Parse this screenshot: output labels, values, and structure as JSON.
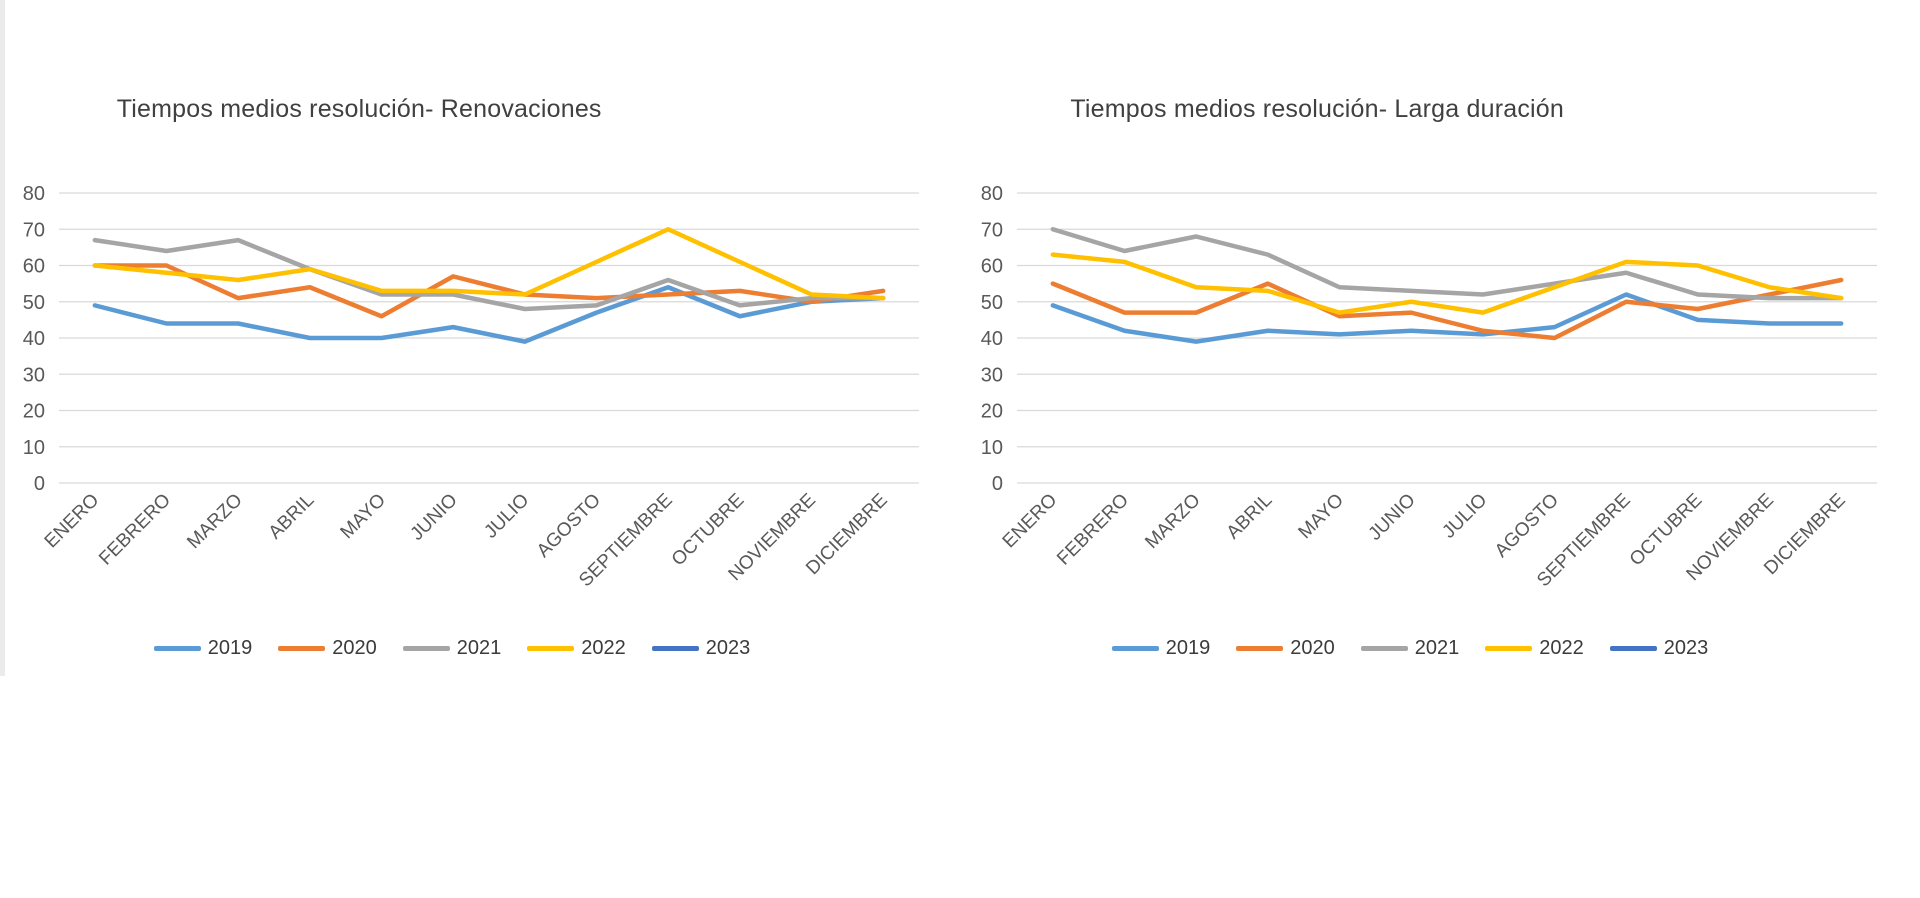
{
  "page": {
    "background": "#ffffff",
    "grid_color": "#D9D9D9",
    "axis_text_color": "#595959",
    "title_text_color": "#404040"
  },
  "chart_data": [
    {
      "type": "line",
      "title": "Tiempos medios resolución- Renovaciones",
      "xlabel": "",
      "ylabel": "",
      "ylim": [
        0,
        80
      ],
      "ytick_step": 10,
      "grid": true,
      "legend_position": "bottom",
      "categories": [
        "ENERO",
        "FEBRERO",
        "MARZO",
        "ABRIL",
        "MAYO",
        "JUNIO",
        "JULIO",
        "AGOSTO",
        "SEPTIEMBRE",
        "OCTUBRE",
        "NOVIEMBRE",
        "DICIEMBRE"
      ],
      "series": [
        {
          "name": "2019",
          "color": "#5B9BD5",
          "values": [
            49,
            44,
            44,
            40,
            40,
            43,
            39,
            47,
            54,
            46,
            50,
            51
          ]
        },
        {
          "name": "2020",
          "color": "#ED7D31",
          "values": [
            60,
            60,
            51,
            54,
            46,
            57,
            52,
            51,
            52,
            53,
            50,
            53
          ]
        },
        {
          "name": "2021",
          "color": "#A5A5A5",
          "values": [
            67,
            64,
            67,
            59,
            52,
            52,
            48,
            49,
            56,
            49,
            51,
            51
          ]
        },
        {
          "name": "2022",
          "color": "#FFC000",
          "values": [
            60,
            58,
            56,
            59,
            53,
            53,
            52,
            61,
            70,
            61,
            52,
            51
          ]
        },
        {
          "name": "2023",
          "color": "#4472C4",
          "values": [
            null,
            null,
            null,
            null,
            null,
            null,
            null,
            null,
            null,
            null,
            null,
            null
          ]
        }
      ]
    },
    {
      "type": "line",
      "title": "Tiempos medios resolución- Larga duración",
      "xlabel": "",
      "ylabel": "",
      "ylim": [
        0,
        80
      ],
      "ytick_step": 10,
      "grid": true,
      "legend_position": "bottom",
      "categories": [
        "ENERO",
        "FEBRERO",
        "MARZO",
        "ABRIL",
        "MAYO",
        "JUNIO",
        "JULIO",
        "AGOSTO",
        "SEPTIEMBRE",
        "OCTUBRE",
        "NOVIEMBRE",
        "DICIEMBRE"
      ],
      "series": [
        {
          "name": "2019",
          "color": "#5B9BD5",
          "values": [
            49,
            42,
            39,
            42,
            41,
            42,
            41,
            43,
            52,
            45,
            44,
            44
          ]
        },
        {
          "name": "2020",
          "color": "#ED7D31",
          "values": [
            55,
            47,
            47,
            55,
            46,
            47,
            42,
            40,
            50,
            48,
            52,
            56
          ]
        },
        {
          "name": "2021",
          "color": "#A5A5A5",
          "values": [
            70,
            64,
            68,
            63,
            54,
            53,
            52,
            55,
            58,
            52,
            51,
            51
          ]
        },
        {
          "name": "2022",
          "color": "#FFC000",
          "values": [
            63,
            61,
            54,
            53,
            47,
            50,
            47,
            54,
            61,
            60,
            54,
            51
          ]
        },
        {
          "name": "2023",
          "color": "#4472C4",
          "values": [
            null,
            null,
            null,
            null,
            null,
            null,
            null,
            null,
            null,
            null,
            null,
            null
          ]
        }
      ]
    }
  ]
}
